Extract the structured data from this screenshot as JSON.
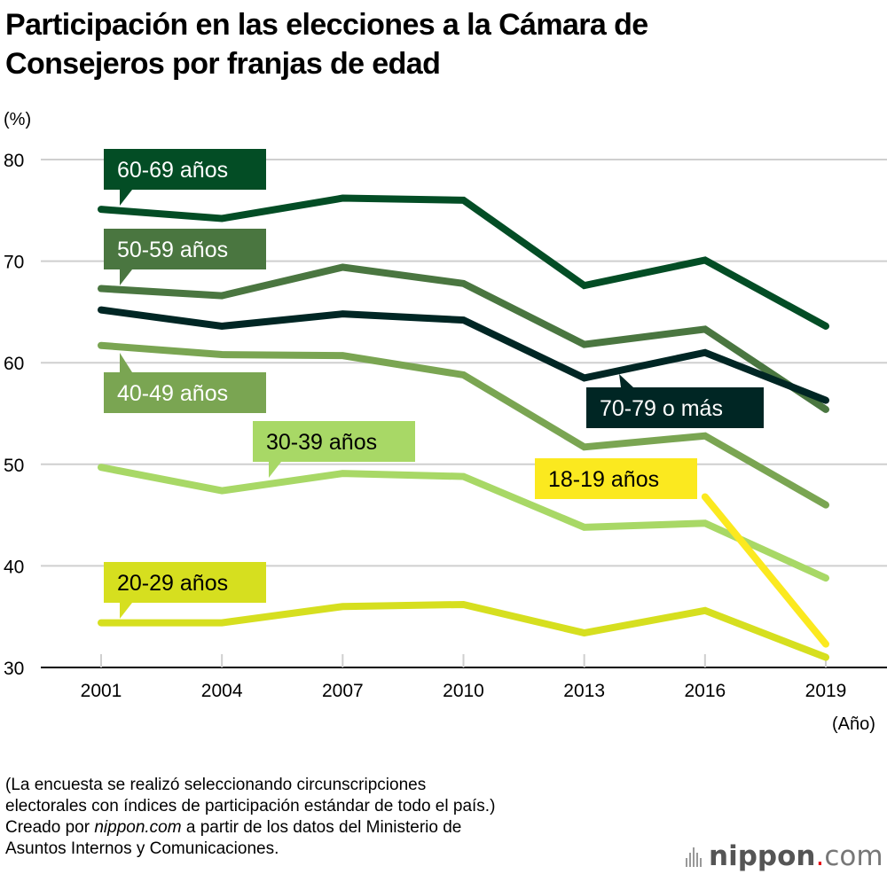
{
  "title_line1": "Participación en las elecciones a la Cámara de",
  "title_line2": "Consejeros por franjas de edad",
  "footnote": {
    "line1": "(La encuesta se realizó seleccionando circunscripciones",
    "line2": "electorales con índices de participación estándar de todo el país.)",
    "line3_pre": "Creado por ",
    "line3_em": "nippon.com",
    "line3_post": " a partir de los datos del Ministerio de",
    "line4": "Asuntos Internos y Comunicaciones."
  },
  "logo": {
    "brand": "nippon",
    "dot": ".",
    "suffix": "com"
  },
  "chart_data": {
    "type": "line",
    "title": "Participación en las elecciones a la Cámara de Consejeros por franjas de edad",
    "ylabel": "(%)",
    "xlabel": "(Año)",
    "ylim": [
      30,
      80
    ],
    "yticks": [
      30,
      40,
      50,
      60,
      70,
      80
    ],
    "x": [
      "2001",
      "2004",
      "2007",
      "2010",
      "2013",
      "2016",
      "2019"
    ],
    "grid": true,
    "series": [
      {
        "name": "60-69 años",
        "color": "#034d25",
        "text_color": "#ffffff",
        "values": [
          75.1,
          74.2,
          76.2,
          76.0,
          67.6,
          70.1,
          63.6
        ]
      },
      {
        "name": "50-59 años",
        "color": "#4a7640",
        "text_color": "#ffffff",
        "values": [
          67.3,
          66.6,
          69.4,
          67.8,
          61.8,
          63.3,
          55.4
        ]
      },
      {
        "name": "70-79 o más",
        "color": "#002624",
        "text_color": "#ffffff",
        "values": [
          65.2,
          63.6,
          64.8,
          64.2,
          58.5,
          61.0,
          56.3
        ]
      },
      {
        "name": "40-49 años",
        "color": "#7aa552",
        "text_color": "#ffffff",
        "values": [
          61.7,
          60.8,
          60.7,
          58.8,
          51.7,
          52.8,
          46.0
        ]
      },
      {
        "name": "30-39 años",
        "color": "#a8d866",
        "text_color": "#000000",
        "values": [
          49.7,
          47.4,
          49.1,
          48.8,
          43.8,
          44.2,
          38.8
        ]
      },
      {
        "name": "20-29 años",
        "color": "#d6df1f",
        "text_color": "#000000",
        "values": [
          34.4,
          34.4,
          36.0,
          36.2,
          33.4,
          35.6,
          31.0
        ]
      },
      {
        "name": "18-19 años",
        "color": "#fbe91f",
        "text_color": "#000000",
        "values": [
          null,
          null,
          null,
          null,
          null,
          46.8,
          32.3
        ]
      }
    ]
  }
}
